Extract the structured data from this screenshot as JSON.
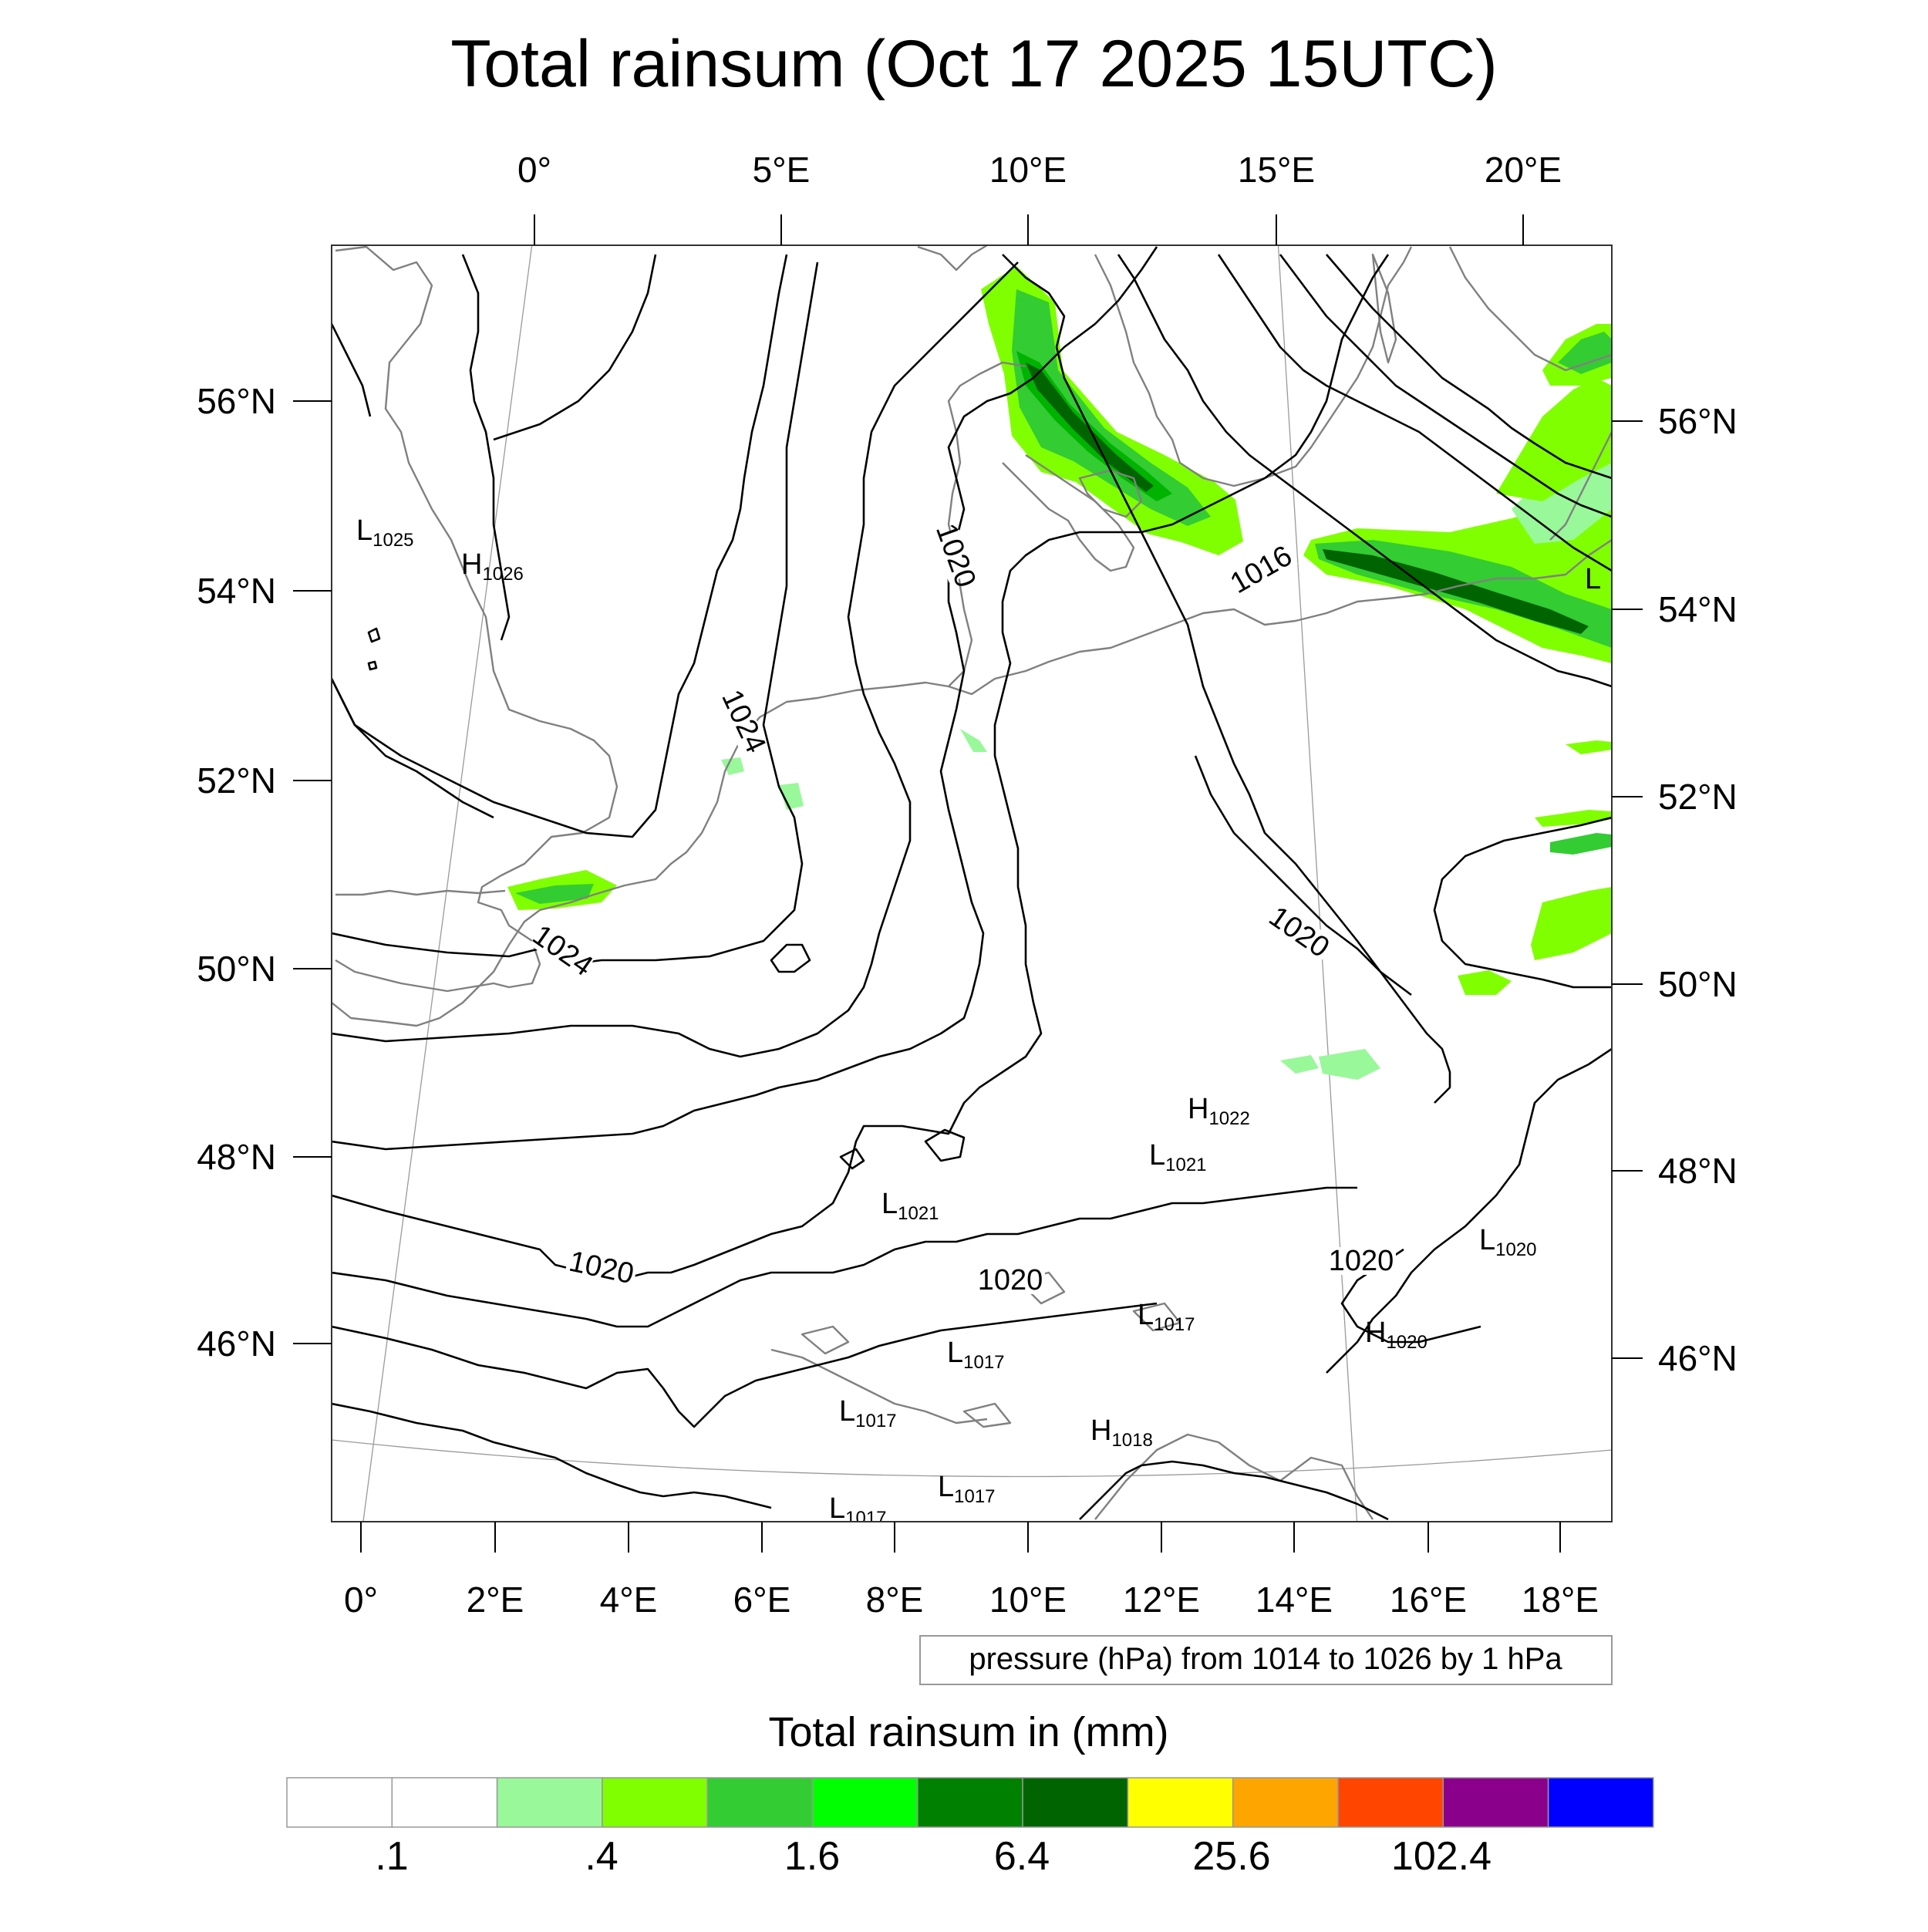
{
  "title": "Total rainsum (Oct 17 2025 15UTC)",
  "top_lon_labels": [
    "0°",
    "5°E",
    "10°E",
    "15°E",
    "20°E"
  ],
  "left_lat_labels": [
    "56°N",
    "54°N",
    "52°N",
    "50°N",
    "48°N",
    "46°N"
  ],
  "right_lat_labels": [
    "56°N",
    "54°N",
    "52°N",
    "50°N",
    "48°N",
    "46°N"
  ],
  "bottom_lon_labels": [
    "0°",
    "2°E",
    "4°E",
    "6°E",
    "8°E",
    "10°E",
    "12°E",
    "14°E",
    "16°E",
    "18°E"
  ],
  "contour_info": "pressure (hPa) from 1014 to 1026 by 1 hPa",
  "contour_labels": [
    "1020",
    "1024",
    "1016",
    "1020",
    "1024",
    "1020",
    "1020",
    "1020"
  ],
  "pressure_centers": [
    {
      "type": "L",
      "value": "1025"
    },
    {
      "type": "H",
      "value": "1026"
    },
    {
      "type": "L",
      "value": ""
    },
    {
      "type": "H",
      "value": "1022"
    },
    {
      "type": "L",
      "value": "1021"
    },
    {
      "type": "L",
      "value": "1021"
    },
    {
      "type": "L",
      "value": "1020"
    },
    {
      "type": "L",
      "value": "1017"
    },
    {
      "type": "H",
      "value": "1020"
    },
    {
      "type": "L",
      "value": "1017"
    },
    {
      "type": "L",
      "value": "1017"
    },
    {
      "type": "H",
      "value": "1018"
    },
    {
      "type": "L",
      "value": "1017"
    },
    {
      "type": "L",
      "value": "1017"
    }
  ],
  "colorbar": {
    "title": "Total rainsum in (mm)",
    "colors": [
      "#ffffff",
      "#ffffff",
      "#99f899",
      "#80ff00",
      "#33cc33",
      "#00ff00",
      "#008000",
      "#006400",
      "#ffff00",
      "#ffa500",
      "#ff4500",
      "#8b008b",
      "#0000ff"
    ],
    "tick_labels": [
      ".1",
      ".4",
      "1.6",
      "6.4",
      "25.6",
      "102.4"
    ]
  }
}
